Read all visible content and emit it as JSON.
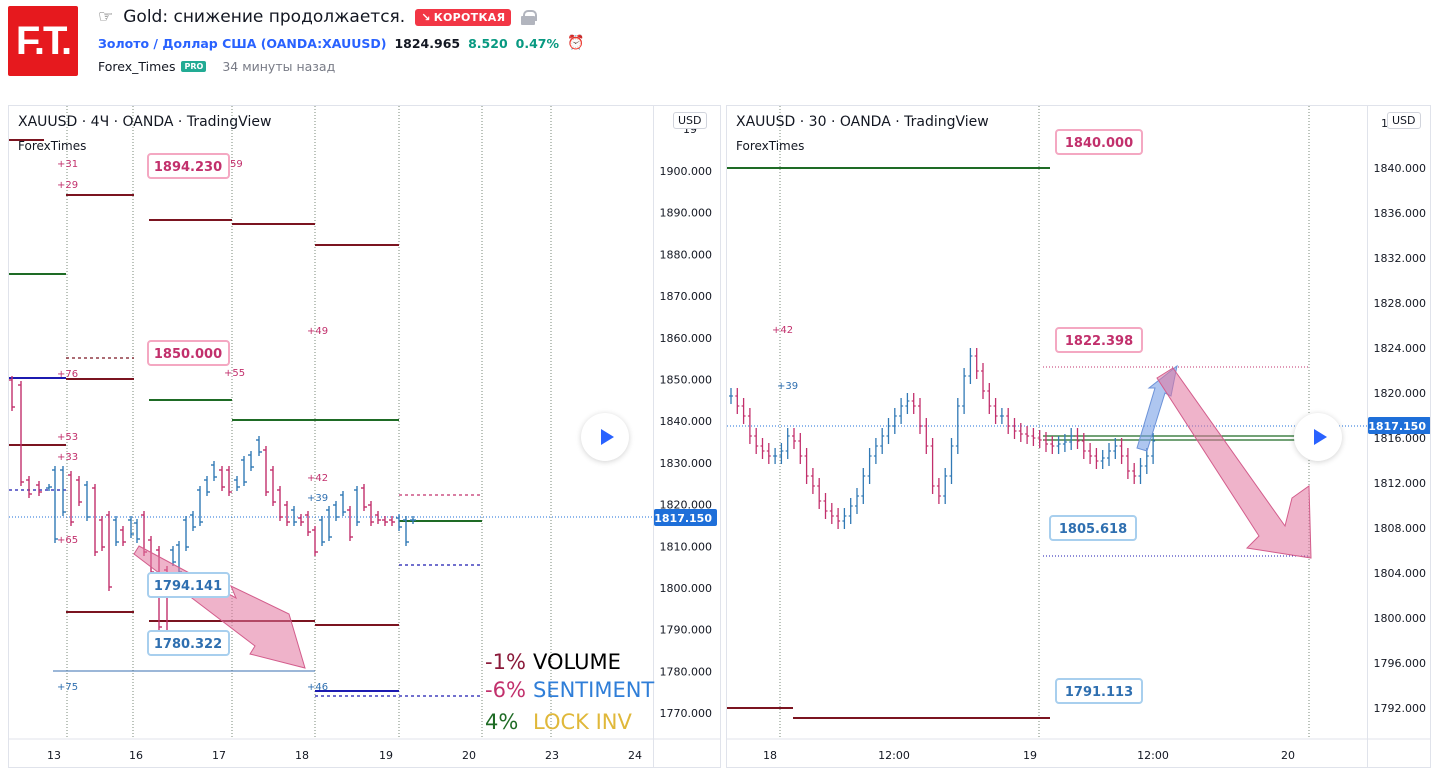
{
  "header": {
    "logo_text": "F.T.",
    "hand_icon": "☞",
    "title": "Gold: снижение продолжается.",
    "badge_arrow": "↘",
    "badge": "КОРОТКАЯ",
    "symbol_link": "Золото / Доллар США (OANDA:XAUUSD)",
    "price": "1824.965",
    "change": "8.520",
    "change_pct": "0.47%",
    "alarm_icon": "⏰",
    "author": "Forex_Times",
    "pro": "PRO",
    "time_ago": "34 минуты назад"
  },
  "colors": {
    "brand": "#e6191e",
    "short_badge": "#f23645",
    "link": "#2962ff",
    "up_bar": "#3179b5",
    "down_bar": "#c2306c",
    "dark_red_level": "#7b1420",
    "green_level": "#1e6b25",
    "navy_level": "#1c1ab0",
    "price_label": "#1e6fd9"
  },
  "left_chart": {
    "title": "XAUUSD · 4Ч · OANDA · TradingView",
    "subtitle": "ForexTimes",
    "currency": "USD",
    "price_ticks": [
      "1900.000",
      "1890.000",
      "1880.000",
      "1870.000",
      "1860.000",
      "1850.000",
      "1840.000",
      "1830.000",
      "1820.000",
      "1810.000",
      "1800.000",
      "1790.000",
      "1780.000",
      "1770.000"
    ],
    "partial_top_tick": "19",
    "current_price": "1817.150",
    "time_ticks": [
      "13",
      "16",
      "17",
      "18",
      "19",
      "20",
      "23",
      "24"
    ],
    "callouts": [
      "1894.230",
      "1850.000",
      "1794.141",
      "1780.322"
    ],
    "small_labels": [
      "+31",
      "+29",
      "+76",
      "+53",
      "+33",
      "+65",
      "+75",
      "+49",
      "+55",
      "+42",
      "+39",
      "+46",
      "59"
    ],
    "legend": [
      {
        "pct": "-1%",
        "label": "VOLUME",
        "pct_color": "#8b1a3a",
        "label_color": "#000000"
      },
      {
        "pct": "-6%",
        "label": "SENTIMENT",
        "pct_color": "#c2306c",
        "label_color": "#2f7ed8"
      },
      {
        "pct": "4%",
        "label": "LOCK INV",
        "pct_color": "#1e6b25",
        "label_color": "#e0b83a"
      }
    ]
  },
  "right_chart": {
    "title": "XAUUSD · 30 · OANDA · TradingView",
    "subtitle": "ForexTimes",
    "currency": "USD",
    "price_ticks": [
      "1840.000",
      "1836.000",
      "1832.000",
      "1828.000",
      "1824.000",
      "1820.000",
      "1816.000",
      "1812.000",
      "1808.000",
      "1804.000",
      "1800.000",
      "1796.000",
      "1792.000"
    ],
    "partial_top_tick": "18",
    "current_price": "1817.150",
    "time_ticks": [
      "18",
      "12:00",
      "19",
      "12:00",
      "20"
    ],
    "callouts": [
      "1840.000",
      "1822.398",
      "1805.618",
      "1791.113"
    ],
    "small_labels": [
      "+42",
      "+39"
    ]
  }
}
